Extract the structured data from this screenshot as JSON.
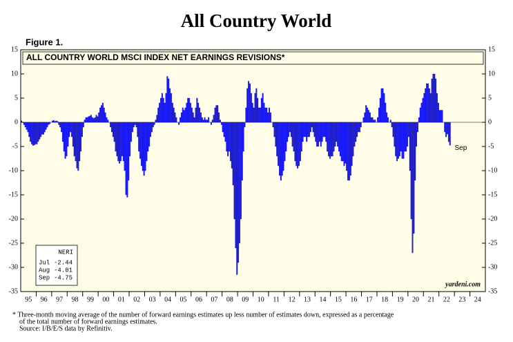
{
  "chart_data": {
    "type": "bar",
    "title": "All Country World",
    "figure_label": "Figure 1.",
    "subtitle": "ALL COUNTRY WORLD MSCI INDEX NET EARNINGS REVISIONS*",
    "source_mark": "yardeni.com",
    "annotation": "Sep",
    "color": "#1a1aff",
    "ylim": [
      -35,
      15
    ],
    "yticks": [
      15,
      10,
      5,
      0,
      -5,
      -10,
      -15,
      -20,
      -25,
      -30,
      -35
    ],
    "categories": [
      "95",
      "96",
      "97",
      "98",
      "99",
      "00",
      "01",
      "02",
      "03",
      "04",
      "05",
      "06",
      "07",
      "08",
      "09",
      "10",
      "11",
      "12",
      "13",
      "14",
      "15",
      "16",
      "17",
      "18",
      "19",
      "20",
      "21",
      "22",
      "23",
      "24"
    ],
    "values": [
      [
        0.3,
        0,
        -0.5,
        -1,
        -1.5,
        -2,
        -3,
        -4,
        -4.5,
        -4.8,
        -4.7,
        -4.5
      ],
      [
        -4.5,
        -4,
        -3.5,
        -3,
        -2.5,
        -2.5,
        -2,
        -1.5,
        -1,
        -0.5,
        -0.3,
        0
      ],
      [
        0.3,
        0.4,
        0.2,
        0.3,
        0.2,
        -0.5,
        -1,
        -2,
        -4,
        -6,
        -7.5,
        -7
      ],
      [
        -5,
        -3,
        -2,
        -3,
        -5,
        -7,
        -8,
        -9.5,
        -10,
        -8,
        -6,
        -3
      ],
      [
        -1,
        0.5,
        1,
        1,
        1.2,
        1.3,
        1.5,
        1,
        0.8,
        1,
        1.5,
        1.2
      ],
      [
        2,
        3,
        3.5,
        4,
        3,
        2,
        1,
        0.5,
        0,
        -1,
        -2,
        -3
      ],
      [
        -4,
        -6,
        -7,
        -8,
        -8.5,
        -8,
        -7,
        -8,
        -10,
        -15,
        -15.5,
        -12
      ],
      [
        -7,
        -4,
        -2,
        -1,
        -0.5,
        -1,
        -3,
        -6,
        -7.5,
        -9,
        -10,
        -11
      ],
      [
        -10,
        -8,
        -6,
        -5,
        -3,
        -2,
        -1,
        -0.5,
        0.5,
        1.5,
        3,
        4
      ],
      [
        5,
        6,
        5,
        4,
        6,
        9.5,
        9,
        7,
        6,
        4,
        3,
        2
      ],
      [
        1,
        0,
        -0.5,
        1,
        2,
        3,
        2.5,
        3,
        4,
        5,
        5,
        4
      ],
      [
        3,
        2,
        1,
        3,
        5,
        4,
        3,
        2,
        1,
        0.5,
        1,
        0.5
      ],
      [
        0.5,
        1,
        0,
        -0.5,
        0.5,
        1.5,
        3,
        3.5,
        3.5,
        2,
        0.5,
        -0.5
      ],
      [
        -2,
        -3,
        -4,
        -6,
        -7,
        -6,
        -8,
        -9.5,
        -13,
        -20,
        -26,
        -31.5
      ],
      [
        -29,
        -25,
        -20,
        -12,
        -6,
        -1,
        3,
        7,
        8.5,
        8,
        6,
        4
      ],
      [
        3,
        6,
        7,
        5,
        3,
        3,
        5,
        6,
        4,
        3,
        3,
        2
      ],
      [
        3,
        2,
        0,
        -1,
        -3,
        -5,
        -7,
        -9,
        -11,
        -12,
        -11,
        -10
      ],
      [
        -8,
        -6,
        -4,
        -3,
        -2,
        -3,
        -5,
        -6,
        -8,
        -9,
        -9.5,
        -9
      ],
      [
        -8,
        -6,
        -4,
        -3,
        -3,
        -4,
        -3,
        -3,
        -2,
        -1,
        -2,
        -3
      ],
      [
        -4,
        -5,
        -5,
        -4,
        -5,
        -4,
        -3,
        -3,
        -4,
        -6,
        -7,
        -7.5
      ],
      [
        -7,
        -7,
        -6,
        -5,
        -4,
        -5,
        -6,
        -7,
        -8,
        -8,
        -9,
        -8.5
      ],
      [
        -10,
        -12,
        -12,
        -11,
        -9,
        -7,
        -5,
        -4,
        -3,
        -2,
        -2,
        -1
      ],
      [
        0,
        1,
        2,
        3.5,
        3,
        2.5,
        2,
        1,
        1,
        0.5,
        0.5,
        0
      ],
      [
        1,
        3,
        5,
        7,
        7,
        6,
        4,
        2,
        1,
        0,
        0.5,
        -1
      ],
      [
        -3,
        -5,
        -7,
        -8,
        -7.5,
        -7,
        -6,
        -7.5,
        -7.5,
        -6,
        -6,
        -5
      ],
      [
        -3,
        -10,
        -20,
        -27,
        -23,
        -12,
        -5,
        -2,
        1,
        3,
        4,
        5
      ],
      [
        6,
        7,
        8,
        8,
        7,
        6,
        9,
        10,
        10,
        9,
        6,
        4
      ],
      [
        2.5,
        2.5,
        2.5,
        0,
        -2,
        -3,
        -2.44,
        -4.01,
        -4.75
      ],
      [],
      []
    ],
    "legend_box": {
      "title": "NERI",
      "rows": [
        {
          "label": "Jul",
          "value": -2.44
        },
        {
          "label": "Aug",
          "value": -4.01
        },
        {
          "label": "Sep",
          "value": -4.75
        }
      ]
    },
    "footnotes": [
      "*  Three-month moving average of the number of forward earnings estimates up less number of estimates down, expressed as a percentage",
      "of the total number of forward earnings estimates.",
      "Source: I/B/E/S data by Refinitiv."
    ]
  }
}
